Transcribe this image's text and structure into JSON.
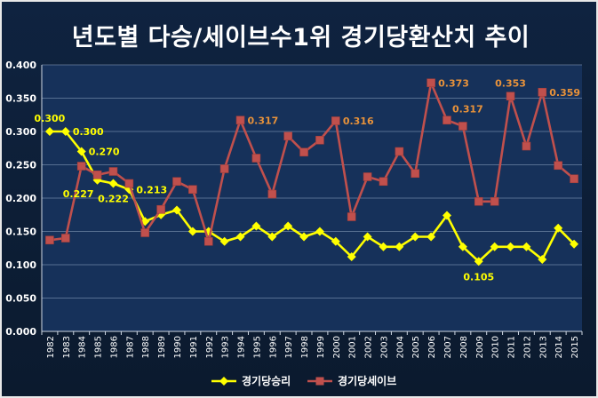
{
  "chart_data": {
    "type": "line",
    "title": "년도별 다승/세이브수1위 경기당환산치 추이",
    "xlabel": "",
    "ylabel": "",
    "ylim": [
      0,
      0.4
    ],
    "y_ticks": [
      "0.000",
      "0.050",
      "0.100",
      "0.150",
      "0.200",
      "0.250",
      "0.300",
      "0.350",
      "0.400"
    ],
    "grid": true,
    "legend_position": "bottom",
    "categories": [
      "1982",
      "1983",
      "1984",
      "1985",
      "1986",
      "1987",
      "1988",
      "1989",
      "1990",
      "1991",
      "1992",
      "1993",
      "1994",
      "1995",
      "1996",
      "1997",
      "1998",
      "1999",
      "2000",
      "2001",
      "2002",
      "2003",
      "2004",
      "2005",
      "2006",
      "2007",
      "2008",
      "2009",
      "2010",
      "2011",
      "2012",
      "2013",
      "2014",
      "2015"
    ],
    "series": [
      {
        "name": "경기당승리",
        "color": "#ffff00",
        "marker": "diamond",
        "values": [
          0.3,
          0.3,
          0.27,
          0.227,
          0.222,
          0.213,
          0.165,
          0.175,
          0.182,
          0.15,
          0.15,
          0.135,
          0.142,
          0.158,
          0.142,
          0.158,
          0.142,
          0.15,
          0.135,
          0.112,
          0.142,
          0.127,
          0.127,
          0.142,
          0.142,
          0.174,
          0.127,
          0.105,
          0.127,
          0.127,
          0.127,
          0.108,
          0.155,
          0.131
        ],
        "labels": [
          {
            "i": 0,
            "text": "0.300",
            "pos": "above"
          },
          {
            "i": 1,
            "text": "0.300",
            "pos": "right"
          },
          {
            "i": 2,
            "text": "0.270",
            "pos": "right"
          },
          {
            "i": 3,
            "text": "0.227",
            "pos": "below-left"
          },
          {
            "i": 4,
            "text": "0.222",
            "pos": "below"
          },
          {
            "i": 5,
            "text": "0.213",
            "pos": "right"
          },
          {
            "i": 27,
            "text": "0.105",
            "pos": "below"
          }
        ]
      },
      {
        "name": "경기당세이브",
        "color": "#c0504d",
        "marker": "square",
        "values": [
          0.137,
          0.14,
          0.248,
          0.235,
          0.24,
          0.222,
          0.148,
          0.183,
          0.225,
          0.213,
          0.135,
          0.244,
          0.317,
          0.26,
          0.206,
          0.293,
          0.269,
          0.287,
          0.316,
          0.172,
          0.232,
          0.225,
          0.27,
          0.237,
          0.373,
          0.317,
          0.308,
          0.195,
          0.195,
          0.353,
          0.278,
          0.359,
          0.249,
          0.229
        ],
        "labels": [
          {
            "i": 12,
            "text": "0.317",
            "pos": "right"
          },
          {
            "i": 18,
            "text": "0.316",
            "pos": "right"
          },
          {
            "i": 24,
            "text": "0.373",
            "pos": "right"
          },
          {
            "i": 25,
            "text": "0.317",
            "pos": "right-up"
          },
          {
            "i": 29,
            "text": "0.353",
            "pos": "above"
          },
          {
            "i": 31,
            "text": "0.359",
            "pos": "right"
          }
        ]
      }
    ]
  }
}
